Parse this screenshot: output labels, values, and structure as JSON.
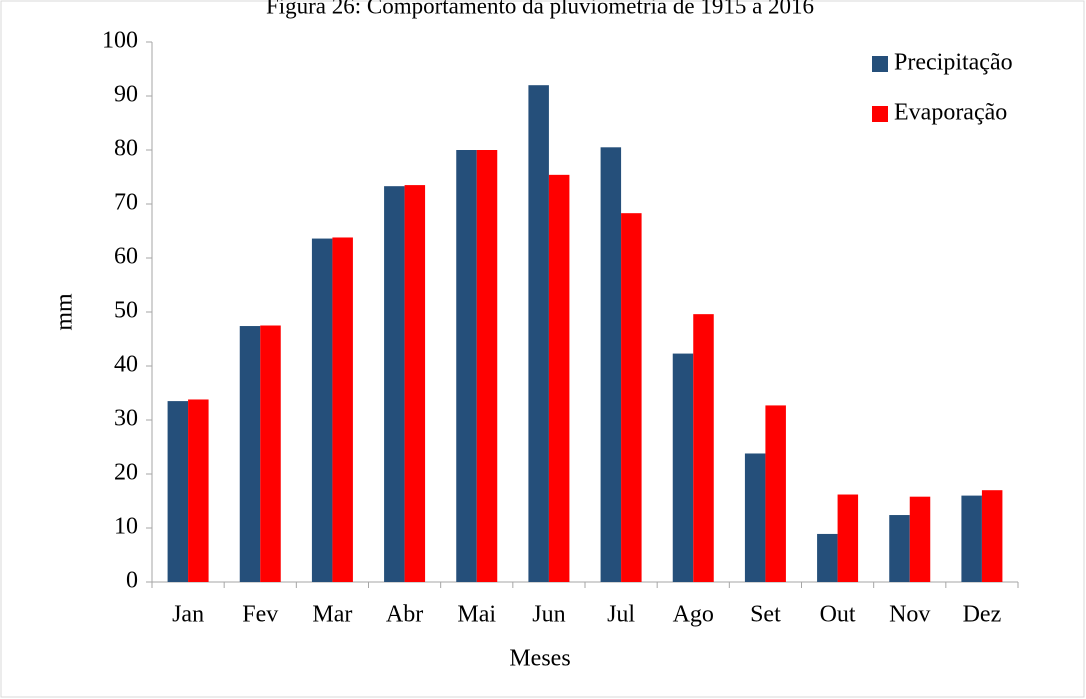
{
  "chart_data": {
    "type": "bar",
    "title": "Figura 26: Comportamento da pluviometria de 1915 a 2016",
    "x_label": "Meses",
    "y_label": "mm",
    "categories": [
      "Jan",
      "Fev",
      "Mar",
      "Abr",
      "Mai",
      "Jun",
      "Jul",
      "Ago",
      "Set",
      "Out",
      "Nov",
      "Dez"
    ],
    "series": [
      {
        "name": "Precipitação",
        "color": "#254f7a",
        "values": [
          33.5,
          47.4,
          63.6,
          73.3,
          80,
          92,
          80.5,
          42.3,
          23.8,
          8.9,
          12.4,
          16
        ]
      },
      {
        "name": "Evaporação",
        "color": "#ff0000",
        "values": [
          33.8,
          47.5,
          63.8,
          73.5,
          80,
          75.4,
          68.3,
          49.6,
          32.7,
          16.2,
          15.8,
          17
        ]
      }
    ],
    "ylim": [
      0,
      100
    ],
    "yticks": [
      0,
      10,
      20,
      30,
      40,
      50,
      60,
      70,
      80,
      90,
      100
    ],
    "grid": false,
    "legend": "upper right"
  }
}
